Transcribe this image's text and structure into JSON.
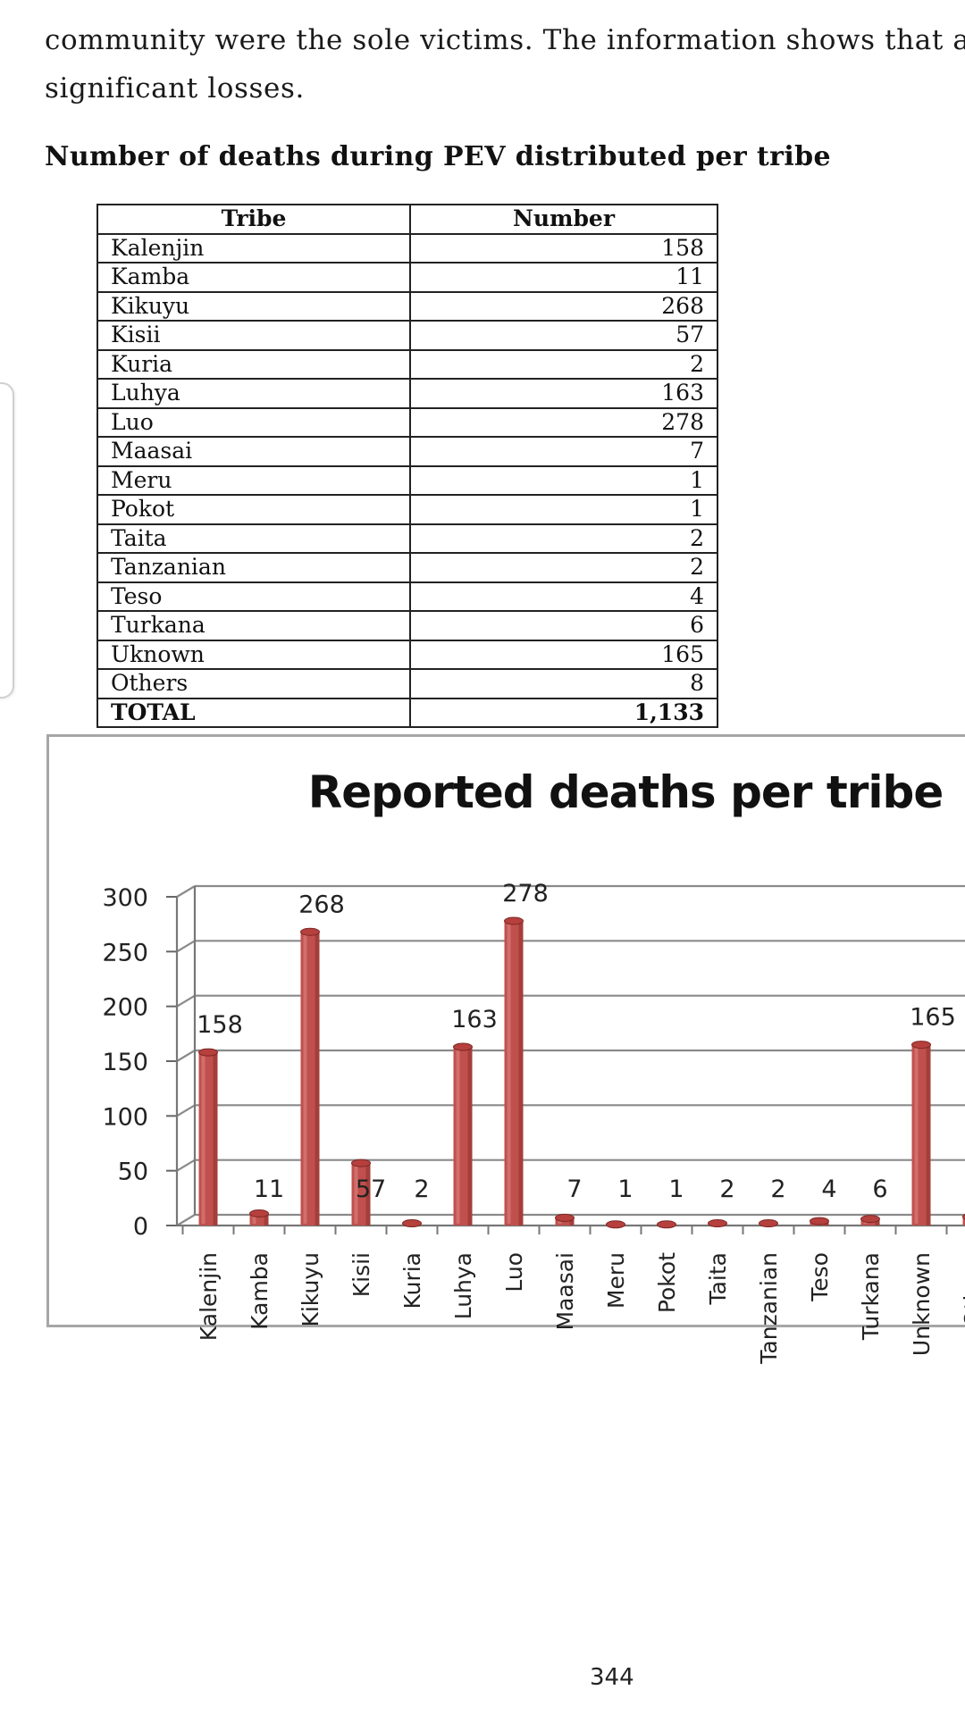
{
  "document": {
    "paragraph_lines": [
      "community were the sole victims. The information shows that all",
      "significant losses."
    ],
    "heading": "Number of deaths during PEV distributed per tribe",
    "page_number": "344"
  },
  "table": {
    "headers": [
      "Tribe",
      "Number"
    ],
    "rows": [
      {
        "tribe": "Kalenjin",
        "number": "158"
      },
      {
        "tribe": "Kamba",
        "number": "11"
      },
      {
        "tribe": "Kikuyu",
        "number": "268"
      },
      {
        "tribe": "Kisii",
        "number": "57"
      },
      {
        "tribe": "Kuria",
        "number": "2"
      },
      {
        "tribe": "Luhya",
        "number": "163"
      },
      {
        "tribe": "Luo",
        "number": "278"
      },
      {
        "tribe": "Maasai",
        "number": "7"
      },
      {
        "tribe": "Meru",
        "number": "1"
      },
      {
        "tribe": "Pokot",
        "number": "1"
      },
      {
        "tribe": "Taita",
        "number": "2"
      },
      {
        "tribe": "Tanzanian",
        "number": "2"
      },
      {
        "tribe": "Teso",
        "number": "4"
      },
      {
        "tribe": "Turkana",
        "number": "6"
      },
      {
        "tribe": "Uknown",
        "number": "165"
      },
      {
        "tribe": "Others",
        "number": "8"
      }
    ],
    "total": {
      "tribe": "TOTAL",
      "number": "1,133"
    }
  },
  "chart_data": {
    "type": "bar",
    "title": "Reported deaths per tribe",
    "categories": [
      "Kalenjin",
      "Kamba",
      "Kikuyu",
      "Kisii",
      "Kuria",
      "Luhya",
      "Luo",
      "Maasai",
      "Meru",
      "Pokot",
      "Taita",
      "Tanzanian",
      "Teso",
      "Turkana",
      "Unknown",
      "Others"
    ],
    "values": [
      158,
      11,
      268,
      57,
      2,
      163,
      278,
      7,
      1,
      1,
      2,
      2,
      4,
      6,
      165,
      8
    ],
    "data_labels": [
      "158",
      "11",
      "268",
      "57",
      "2",
      "163",
      "278",
      "7",
      "1",
      "1",
      "2",
      "2",
      "4",
      "6",
      "165",
      ""
    ],
    "y_ticks": [
      "0",
      "50",
      "100",
      "150",
      "200",
      "250",
      "300"
    ],
    "ylim": [
      0,
      300
    ],
    "grid": true,
    "bar_color": "#c0504d",
    "bar_dark_color": "#8e2f2c",
    "gridline_color": "#8a8a8a",
    "legend": "none",
    "xlabel": "",
    "ylabel": ""
  }
}
